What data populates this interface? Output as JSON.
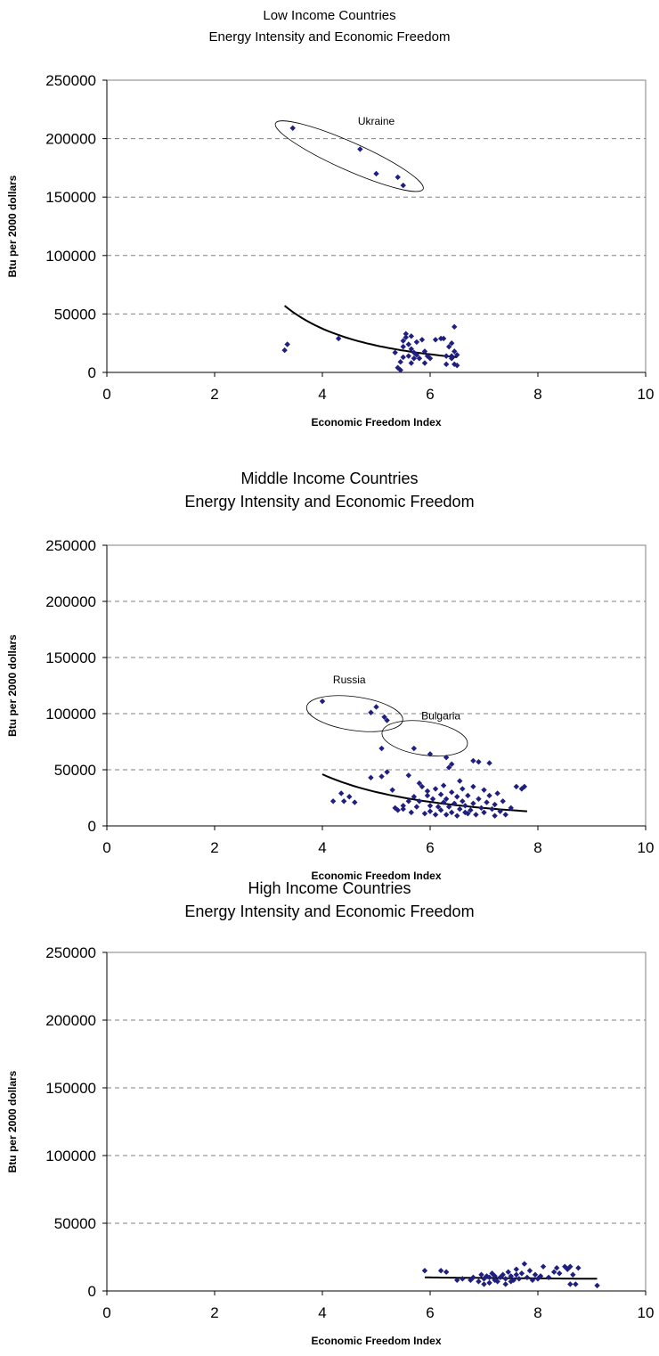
{
  "colors": {
    "point": "#1f1f80",
    "trend": "#000000",
    "grid": "#808080",
    "axis": "#000000"
  },
  "chart_data": [
    {
      "type": "scatter",
      "title": [
        "Low Income Countries",
        "Energy Intensity and Economic Freedom"
      ],
      "xlabel": "Economic Freedom Index",
      "ylabel": "Btu per 2000 dollars",
      "xlim": [
        0,
        10
      ],
      "ylim": [
        0,
        250000
      ],
      "x_ticks": [
        "0",
        "2",
        "4",
        "6",
        "8",
        "10"
      ],
      "y_ticks": [
        "0",
        "50000",
        "100000",
        "150000",
        "200000",
        "250000"
      ],
      "grid": "horizontal dashed",
      "points": [
        [
          3.3,
          19000
        ],
        [
          3.35,
          24000
        ],
        [
          3.45,
          209000
        ],
        [
          4.3,
          29000
        ],
        [
          4.7,
          191000
        ],
        [
          5.0,
          170000
        ],
        [
          5.4,
          167000
        ],
        [
          5.5,
          160000
        ],
        [
          5.35,
          17000
        ],
        [
          5.4,
          4000
        ],
        [
          5.45,
          2000
        ],
        [
          5.45,
          9000
        ],
        [
          5.5,
          13000
        ],
        [
          5.5,
          22000
        ],
        [
          5.5,
          27000
        ],
        [
          5.55,
          30000
        ],
        [
          5.55,
          33000
        ],
        [
          5.6,
          14000
        ],
        [
          5.6,
          24000
        ],
        [
          5.65,
          31000
        ],
        [
          5.65,
          20000
        ],
        [
          5.7,
          12000
        ],
        [
          5.7,
          17000
        ],
        [
          5.75,
          15000
        ],
        [
          5.75,
          26000
        ],
        [
          5.8,
          12000
        ],
        [
          5.85,
          28000
        ],
        [
          5.9,
          18000
        ],
        [
          5.9,
          8000
        ],
        [
          5.95,
          14000
        ],
        [
          6.0,
          12000
        ],
        [
          6.1,
          28000
        ],
        [
          6.2,
          29000
        ],
        [
          6.25,
          29000
        ],
        [
          6.3,
          7000
        ],
        [
          6.3,
          14000
        ],
        [
          6.35,
          22000
        ],
        [
          6.4,
          14000
        ],
        [
          6.4,
          25000
        ],
        [
          6.45,
          7000
        ],
        [
          6.45,
          39000
        ],
        [
          6.45,
          18000
        ],
        [
          6.5,
          6000
        ],
        [
          6.5,
          15000
        ],
        [
          6.4,
          12000
        ],
        [
          5.65,
          8000
        ]
      ],
      "trend": {
        "type": "power",
        "x_start": 3.3,
        "x_end": 6.5,
        "y_start": 57000,
        "y_end": 13000
      },
      "annotations": [
        {
          "text": "Ukraine",
          "x": 5.0,
          "y": 212000
        }
      ],
      "ellipses": [
        {
          "cx": 4.5,
          "cy": 185000,
          "rx_units": 1.5,
          "ry_units": 12000,
          "angle_deg": 24
        }
      ]
    },
    {
      "type": "scatter",
      "title": [
        "Middle Income Countries",
        "Energy Intensity and Economic Freedom"
      ],
      "xlabel": "Economic Freedom Index",
      "ylabel": "Btu per 2000 dollars",
      "xlim": [
        0,
        10
      ],
      "ylim": [
        0,
        250000
      ],
      "x_ticks": [
        "0",
        "2",
        "4",
        "6",
        "8",
        "10"
      ],
      "y_ticks": [
        "0",
        "50000",
        "100000",
        "150000",
        "200000",
        "250000"
      ],
      "grid": "horizontal dashed",
      "points": [
        [
          4.0,
          111000
        ],
        [
          4.9,
          101000
        ],
        [
          5.0,
          106000
        ],
        [
          5.15,
          97000
        ],
        [
          5.2,
          94000
        ],
        [
          5.1,
          69000
        ],
        [
          5.7,
          69000
        ],
        [
          6.0,
          64000
        ],
        [
          6.3,
          61000
        ],
        [
          4.2,
          22000
        ],
        [
          4.35,
          29000
        ],
        [
          4.4,
          22000
        ],
        [
          4.5,
          26000
        ],
        [
          4.6,
          21000
        ],
        [
          4.9,
          43000
        ],
        [
          5.1,
          44000
        ],
        [
          5.2,
          48000
        ],
        [
          5.3,
          32000
        ],
        [
          5.35,
          16000
        ],
        [
          5.4,
          14000
        ],
        [
          5.5,
          18000
        ],
        [
          5.5,
          15000
        ],
        [
          5.6,
          45000
        ],
        [
          5.6,
          22000
        ],
        [
          5.65,
          12000
        ],
        [
          5.7,
          26000
        ],
        [
          5.75,
          17000
        ],
        [
          5.8,
          38000
        ],
        [
          5.8,
          22000
        ],
        [
          5.85,
          35000
        ],
        [
          5.9,
          11000
        ],
        [
          5.95,
          31000
        ],
        [
          6.0,
          18000
        ],
        [
          6.0,
          13000
        ],
        [
          6.05,
          24000
        ],
        [
          6.1,
          33000
        ],
        [
          6.1,
          10000
        ],
        [
          6.15,
          17000
        ],
        [
          6.2,
          28000
        ],
        [
          6.2,
          14000
        ],
        [
          6.25,
          21000
        ],
        [
          6.3,
          10000
        ],
        [
          6.3,
          24000
        ],
        [
          6.35,
          52000
        ],
        [
          6.35,
          17000
        ],
        [
          6.4,
          55000
        ],
        [
          6.4,
          30000
        ],
        [
          6.4,
          12000
        ],
        [
          6.45,
          20000
        ],
        [
          6.5,
          26000
        ],
        [
          6.5,
          9000
        ],
        [
          6.55,
          15000
        ],
        [
          6.6,
          22000
        ],
        [
          6.6,
          33000
        ],
        [
          6.65,
          18000
        ],
        [
          6.7,
          11000
        ],
        [
          6.7,
          27000
        ],
        [
          6.75,
          14000
        ],
        [
          6.8,
          58000
        ],
        [
          6.8,
          35000
        ],
        [
          6.8,
          20000
        ],
        [
          6.85,
          10000
        ],
        [
          6.9,
          57000
        ],
        [
          6.9,
          24000
        ],
        [
          6.95,
          16000
        ],
        [
          7.0,
          32000
        ],
        [
          7.0,
          12000
        ],
        [
          7.05,
          21000
        ],
        [
          7.1,
          56000
        ],
        [
          7.1,
          27000
        ],
        [
          7.15,
          15000
        ],
        [
          7.2,
          9000
        ],
        [
          7.2,
          19000
        ],
        [
          7.3,
          13000
        ],
        [
          7.35,
          22000
        ],
        [
          7.4,
          10000
        ],
        [
          7.5,
          16000
        ],
        [
          7.6,
          35000
        ],
        [
          7.7,
          33000
        ],
        [
          7.75,
          35000
        ],
        [
          6.25,
          36000
        ],
        [
          6.55,
          40000
        ],
        [
          5.95,
          27000
        ],
        [
          6.65,
          12000
        ],
        [
          7.25,
          29000
        ]
      ],
      "trend": {
        "type": "power",
        "x_start": 4.0,
        "x_end": 7.8,
        "y_start": 46000,
        "y_end": 13000
      },
      "annotations": [
        {
          "text": "Russia",
          "x": 4.5,
          "y": 127000
        },
        {
          "text": "Bulgaria",
          "x": 6.2,
          "y": 95000
        }
      ],
      "ellipses": [
        {
          "cx": 4.6,
          "cy": 100000,
          "rx_units": 0.9,
          "ry_units": 15000,
          "angle_deg": 8
        },
        {
          "cx": 5.9,
          "cy": 78000,
          "rx_units": 0.8,
          "ry_units": 15000,
          "angle_deg": 8
        }
      ]
    },
    {
      "type": "scatter",
      "title": [
        "High Income Countries",
        "Energy Intensity and Economic Freedom"
      ],
      "xlabel": "Economic Freedom Index",
      "ylabel": "Btu per 2000 dollars",
      "xlim": [
        0,
        10
      ],
      "ylim": [
        0,
        250000
      ],
      "x_ticks": [
        "0",
        "2",
        "4",
        "6",
        "8",
        "10"
      ],
      "y_ticks": [
        "0",
        "50000",
        "100000",
        "150000",
        "200000",
        "250000"
      ],
      "grid": "horizontal dashed",
      "points": [
        [
          5.9,
          15000
        ],
        [
          6.2,
          15000
        ],
        [
          6.3,
          14000
        ],
        [
          6.5,
          8000
        ],
        [
          6.6,
          9000
        ],
        [
          6.8,
          10000
        ],
        [
          6.9,
          7000
        ],
        [
          6.95,
          12000
        ],
        [
          7.0,
          9000
        ],
        [
          7.05,
          11000
        ],
        [
          7.1,
          6000
        ],
        [
          7.1,
          10000
        ],
        [
          7.15,
          13000
        ],
        [
          7.2,
          8000
        ],
        [
          7.2,
          11000
        ],
        [
          7.25,
          7000
        ],
        [
          7.3,
          10000
        ],
        [
          7.35,
          12000
        ],
        [
          7.4,
          9000
        ],
        [
          7.45,
          14000
        ],
        [
          7.5,
          7000
        ],
        [
          7.5,
          11000
        ],
        [
          7.55,
          8000
        ],
        [
          7.6,
          12000
        ],
        [
          7.6,
          16000
        ],
        [
          7.65,
          9000
        ],
        [
          7.7,
          13000
        ],
        [
          7.75,
          20000
        ],
        [
          7.8,
          10000
        ],
        [
          7.85,
          15000
        ],
        [
          7.9,
          8000
        ],
        [
          7.95,
          12000
        ],
        [
          8.0,
          9000
        ],
        [
          8.05,
          11000
        ],
        [
          8.1,
          18000
        ],
        [
          8.2,
          10000
        ],
        [
          8.3,
          14000
        ],
        [
          8.35,
          17000
        ],
        [
          8.4,
          13000
        ],
        [
          8.5,
          18000
        ],
        [
          8.55,
          16000
        ],
        [
          8.6,
          18000
        ],
        [
          8.65,
          12000
        ],
        [
          8.7,
          5000
        ],
        [
          8.75,
          17000
        ],
        [
          9.1,
          4000
        ],
        [
          7.0,
          5000
        ],
        [
          7.4,
          5000
        ],
        [
          8.6,
          5000
        ],
        [
          6.75,
          8000
        ]
      ],
      "trend": {
        "type": "power",
        "x_start": 5.9,
        "x_end": 9.1,
        "y_start": 10000,
        "y_end": 9000
      },
      "annotations": [],
      "ellipses": []
    }
  ]
}
